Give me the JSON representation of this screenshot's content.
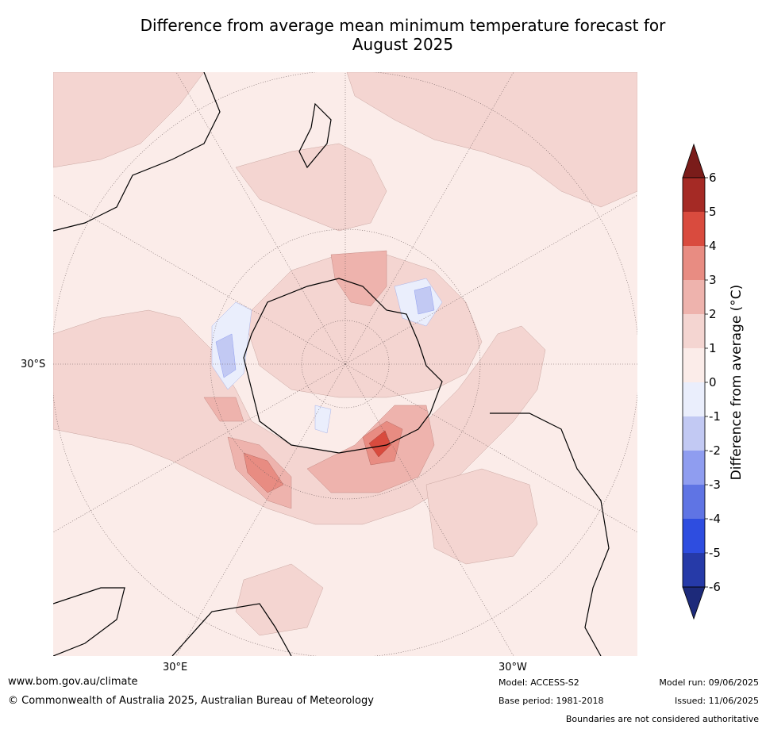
{
  "title_line1": "Difference from average mean minimum temperature forecast for",
  "title_line2": "August 2025",
  "lat_label": "30°S",
  "lon_label_left": "30°E",
  "lon_label_right": "30°W",
  "colorbar": {
    "label": "Difference from average (°C)",
    "ticks": [
      "6",
      "5",
      "4",
      "3",
      "2",
      "1",
      "0",
      "-1",
      "-2",
      "-3",
      "-4",
      "-5",
      "-6"
    ],
    "colors": [
      "#a52a25",
      "#d94b3e",
      "#e88c82",
      "#eeb3ad",
      "#f4d5d1",
      "#fbece9",
      "#eaeefc",
      "#c2c9f3",
      "#8f9df0",
      "#5f74e4",
      "#2e4de0",
      "#263aa8"
    ],
    "top_arrow_color": "#7a1c1a",
    "bottom_arrow_color": "#1d2a7a"
  },
  "footer": {
    "site": "www.bom.gov.au/climate",
    "copyright": "© Commonwealth of Australia 2025, Australian Bureau of Meteorology",
    "model": "Model: ACCESS-S2",
    "base_period": "Base period: 1981-2018",
    "model_run": "Model run: 09/06/2025",
    "issued": "Issued: 11/06/2025",
    "disclaimer": "Boundaries are not considered authoritative"
  }
}
